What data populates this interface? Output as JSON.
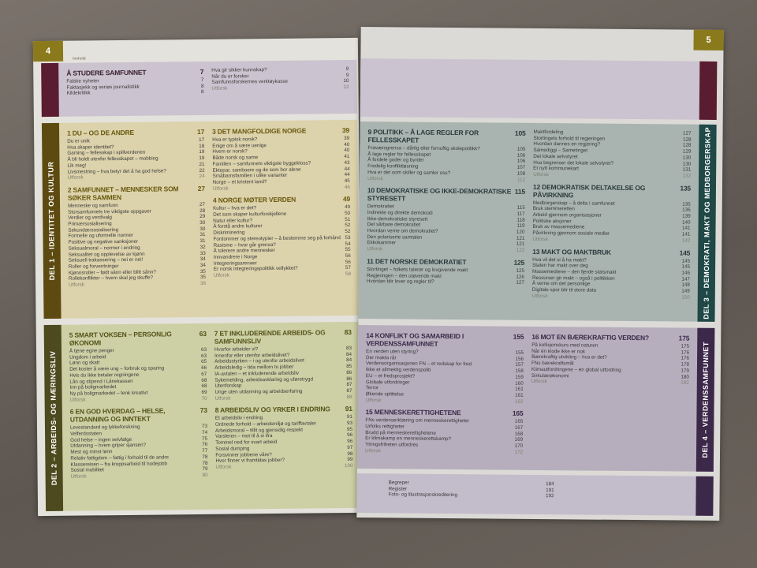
{
  "left": {
    "page_number": "4",
    "kicker": "Innhold",
    "color": "#8a7a1c",
    "intro": {
      "color": "#cbc3cf",
      "tab": "#5a1c30",
      "label": "",
      "cols": [
        [
          {
            "title": "Å studere samfunnet",
            "page": "7",
            "items": [
              [
                "Falske nyheter",
                "7"
              ],
              [
                "Faktasjekk og seriøs journalistikk",
                "8"
              ],
              [
                "Kildekritikk",
                "8"
              ]
            ]
          }
        ],
        [
          {
            "title": "",
            "page": "",
            "items": [
              [
                "Hva gir sikker kunnskap?",
                "9"
              ],
              [
                "Når du er forsker",
                "9"
              ],
              [
                "Samfunnsforskernes verktøykasse",
                "10"
              ],
              [
                "Utforsk",
                "12"
              ]
            ]
          }
        ]
      ]
    },
    "del1": {
      "color": "#dcd2ab",
      "tab": "#5c4a10",
      "label": "DEL 1 – IDENTITET OG KULTUR",
      "title_color": "#6a5a10",
      "cols": [
        [
          {
            "title": "1 Du – og de andre",
            "page": "17",
            "items": [
              [
                "Du er unik",
                "17"
              ],
              [
                "Hva skaper identitet?",
                "18"
              ],
              [
                "Gaming – fellesskap i spillverdenen",
                "19"
              ],
              [
                "Å bli holdt utenfor fellesskapet – mobbing",
                "19"
              ],
              [
                "Lik meg!",
                "21"
              ],
              [
                "Livsmestring – hva betyr det å ha god helse?",
                "22"
              ],
              [
                "Utforsk",
                "24"
              ]
            ]
          },
          {
            "title": "2 Samfunnet – mennesker som søker sammen",
            "page": "27",
            "items": [
              [
                "Menneske og samfunn",
                "27"
              ],
              [
                "Storsamfunnets tre viktigste oppgaver",
                "28"
              ],
              [
                "Verdier og verdivalg",
                "29"
              ],
              [
                "Primærsosialisering",
                "30"
              ],
              [
                "Sekundærsosialisering",
                "30"
              ],
              [
                "Formelle og uformelle normer",
                "31"
              ],
              [
                "Positive og negative sanksjoner",
                "31"
              ],
              [
                "Seksualmoral – normer i endring",
                "32"
              ],
              [
                "Seksualitet og opplevelse av kjønn",
                "33"
              ],
              [
                "Seksuell trakassering – nei er nei!",
                "34"
              ],
              [
                "Roller og forventninger",
                "34"
              ],
              [
                "Kjønnsroller – født sånn eller blitt sånn?",
                "35"
              ],
              [
                "Rollekonflikter – hvem skal jeg skuffe?",
                "35"
              ],
              [
                "Utforsk",
                "36"
              ]
            ]
          }
        ],
        [
          {
            "title": "3 Det mangfoldige Norge",
            "page": "39",
            "items": [
              [
                "Hva er typisk norsk?",
                "39"
              ],
              [
                "Enige om å være uenige",
                "40"
              ],
              [
                "Hvem er norsk?",
                "40"
              ],
              [
                "Både norsk og same",
                "41"
              ],
              [
                "Familien – samfunnets viktigste byggekloss?",
                "43"
              ],
              [
                "Ektepar, samboere og de som bor alene",
                "44"
              ],
              [
                "Småbarnsfamilien i ulike varianter",
                "44"
              ],
              [
                "Norge – et kristent land?",
                "45"
              ],
              [
                "Utforsk",
                "46"
              ]
            ]
          },
          {
            "title": "4 Norge møter verden",
            "page": "49",
            "items": [
              [
                "Kultur – hva er det?",
                "49"
              ],
              [
                "Det som skaper kulturforskjellene",
                "50"
              ],
              [
                "Natur eller kultur?",
                "51"
              ],
              [
                "Å forstå andre kulturer",
                "52"
              ],
              [
                "Diskriminering",
                "52"
              ],
              [
                "Fordommer og stereotypier – å bestemme seg på forhånd",
                "53"
              ],
              [
                "Rasisme – hvor går grensa?",
                "54"
              ],
              [
                "Å tolerere andre mennesker",
                "55"
              ],
              [
                "Innvandrere i Norge",
                "56"
              ],
              [
                "Integreringsarenaer",
                "56"
              ],
              [
                "Er norsk integreringspolitikk vellykket?",
                "57"
              ],
              [
                "Utforsk",
                "58"
              ]
            ]
          }
        ]
      ]
    },
    "del2": {
      "color": "#cdcfa5",
      "tab": "#4c4a1e",
      "label": "DEL 2 – ARBEIDS- OG NÆRINGSLIV",
      "title_color": "#55541a",
      "cols": [
        [
          {
            "title": "5 Smart voksen – personlig økonomi",
            "page": "63",
            "items": [
              [
                "Å tjene egne penger",
                "63"
              ],
              [
                "Ungdom i arbeid",
                "63"
              ],
              [
                "Lønn og skatt",
                "65"
              ],
              [
                "Det koster å være ung – forbruk og sparing",
                "66"
              ],
              [
                "Hvis du ikke betaler regningene",
                "67"
              ],
              [
                "Lån og stipend i Lånekassen",
                "68"
              ],
              [
                "Inn på boligmarkedet",
                "68"
              ],
              [
                "Ny på boligmarkedet – tenk kreativt",
                "69"
              ],
              [
                "Utforsk",
                "70"
              ]
            ]
          },
          {
            "title": "6 En god hverdag – helse, utdanning og inntekt",
            "page": "73",
            "items": [
              [
                "Levestandard og lykkeforskning",
                "73"
              ],
              [
                "Velferdsstaten",
                "74"
              ],
              [
                "God helse – ingen selvfølge",
                "75"
              ],
              [
                "Utdanning – hvem griper sjansen?",
                "76"
              ],
              [
                "Mest og minst lønn",
                "77"
              ],
              [
                "Relativ fattigdom – fattig i forhold til de andre",
                "78"
              ],
              [
                "Klassereisen – fra kroppsarbeid til hodejobb",
                "78"
              ],
              [
                "Sosial mobilitet",
                "79"
              ],
              [
                "Utforsk",
                "80"
              ]
            ]
          }
        ],
        [
          {
            "title": "7 Et inkluderende arbeids- og samfunnsliv",
            "page": "83",
            "items": [
              [
                "Hvorfor arbeider vi?",
                "83"
              ],
              [
                "Innenfor eller utenfor arbeidslivet?",
                "84"
              ],
              [
                "Arbeidsstyrken – i og utenfor arbeidslivet",
                "84"
              ],
              [
                "Arbeidsledig – tida mellom to jobber",
                "85"
              ],
              [
                "IA-avtalen – et inkluderende arbeidsliv",
                "86"
              ],
              [
                "Sykemelding, arbeidsavklaring og uføretrygd",
                "86"
              ],
              [
                "Utenforskap",
                "87"
              ],
              [
                "Unge uten utdanning og arbeidserfaring",
                "87"
              ],
              [
                "Utforsk",
                "88"
              ]
            ]
          },
          {
            "title": "8 Arbeidsliv og yrker i endring",
            "page": "91",
            "items": [
              [
                "Et arbeidsliv i endring",
                "91"
              ],
              [
                "Ordnede forhold – arbeidsmiljø og tariffavtaler",
                "93"
              ],
              [
                "Arbeidsmoral – tillit og gjensidig respekt",
                "95"
              ],
              [
                "Varsleren – mot til å si ifra",
                "96"
              ],
              [
                "Tommel ned for svart arbeid",
                "96"
              ],
              [
                "Sosial dumping",
                "97"
              ],
              [
                "Forsvinner jobbene våre?",
                "98"
              ],
              [
                "Hvor finner vi framtidas jobber?",
                "99"
              ],
              [
                "Utforsk",
                "100"
              ]
            ]
          }
        ]
      ]
    }
  },
  "right": {
    "page_number": "5",
    "color": "#8a7a1c",
    "top": {
      "color": "#cbc3cf",
      "tab": "#5a1c30"
    },
    "del3": {
      "color": "#a9b4b1",
      "tab": "#1f4846",
      "label": "DEL 3 – DEMOKRATI, MAKT OG MEDBORGERSKAP",
      "title_color": "#2a3a3a",
      "cols": [
        [
          {
            "title": "9 Politikk – å lage regler for fellesskapet",
            "page": "105",
            "items": [
              [
                "Fraværsgrensa – dårlig eller fornuftig skolepolitikk?",
                "105"
              ],
              [
                "Å lage regler for fellesskapet",
                "106"
              ],
              [
                "Å fordele goder og byrder",
                "106"
              ],
              [
                "Fredelig konfliktløsning",
                "107"
              ],
              [
                "Hva er det som skiller og samler oss?",
                "108"
              ],
              [
                "Utforsk",
                "112"
              ]
            ]
          },
          {
            "title": "10 Demokratiske og ikke-demokratiske styresett",
            "page": "115",
            "items": [
              [
                "Demokratiet",
                "115"
              ],
              [
                "Indirekte og direkte demokrati",
                "117"
              ],
              [
                "Ikke-demokratiske styresett",
                "118"
              ],
              [
                "Det sårbare demokratiet",
                "119"
              ],
              [
                "Hvordan verne om demokratiet?",
                "120"
              ],
              [
                "Den polariserte samtalen",
                "121"
              ],
              [
                "Ekkokammer",
                "121"
              ],
              [
                "Utforsk",
                "122"
              ]
            ]
          },
          {
            "title": "11 Det norske demokratiet",
            "page": "125",
            "items": [
              [
                "Stortinget – folkets talerør og lovgivende makt",
                "125"
              ],
              [
                "Regjeringen – den utøvende makt",
                "126"
              ],
              [
                "Hvordan blir lover og regler til?",
                "127"
              ]
            ]
          }
        ],
        [
          {
            "title": "",
            "page": "",
            "items": [
              [
                "Maktfordeling",
                "127"
              ],
              [
                "Stortingets forhold til regjeringen",
                "128"
              ],
              [
                "Hvordan dannes en regjering?",
                "128"
              ],
              [
                "Sámediggi – Sametinget",
                "129"
              ],
              [
                "Det lokale selvstyret",
                "130"
              ],
              [
                "Hva begrenser det lokale selvstyret?",
                "130"
              ],
              [
                "Et nytt kommunekart",
                "131"
              ],
              [
                "Utforsk",
                "132"
              ]
            ]
          },
          {
            "title": "12 Demokratisk deltakelse og påvirkning",
            "page": "135",
            "items": [
              [
                "Medborgerskap – å delta i samfunnet",
                "135"
              ],
              [
                "Bruk stemmeretten",
                "136"
              ],
              [
                "Arbeid gjennom organisasjoner",
                "139"
              ],
              [
                "Politiske aksjoner",
                "140"
              ],
              [
                "Bruk av massemediene",
                "141"
              ],
              [
                "Påvirkning gjennom sosiale medier",
                "141"
              ],
              [
                "Utforsk",
                "142"
              ]
            ]
          },
          {
            "title": "13 Makt og maktbruk",
            "page": "145",
            "items": [
              [
                "Hva vil det si å ha makt?",
                "145"
              ],
              [
                "Staten har makt over deg",
                "145"
              ],
              [
                "Massemediene – den fjerde statsmakt",
                "146"
              ],
              [
                "Ressurser gir makt – også i politikken",
                "147"
              ],
              [
                "Å verne om det personlige",
                "148"
              ],
              [
                "Digitale spor blir til store data",
                "149"
              ],
              [
                "Utforsk",
                "150"
              ]
            ]
          }
        ]
      ]
    },
    "del4": {
      "color": "#b6aebd",
      "tab": "#3c2848",
      "label": "DEL 4 – VERDENSSAMFUNNET",
      "title_color": "#3a2a48",
      "cols": [
        [
          {
            "title": "14 Konflikt og samarbeid i verdenssamfunnet",
            "page": "155",
            "items": [
              [
                "En verden uten styring?",
                "155"
              ],
              [
                "Der makta rår",
                "156"
              ],
              [
                "Verdensorganisasjonen FN – et redskap for fred",
                "157"
              ],
              [
                "Ikke et allmektig verdenspoliti",
                "158"
              ],
              [
                "EU – et fredsprosjekt?",
                "159"
              ],
              [
                "Globale utfordringer",
                "160"
              ],
              [
                "Terror",
                "161"
              ],
              [
                "Økende splittelse",
                "161"
              ],
              [
                "Utforsk",
                "162"
              ]
            ]
          },
          {
            "title": "15 Menneskerettighetene",
            "page": "165",
            "items": [
              [
                "FNs verdenserklæring om menneskerettigheter",
                "165"
              ],
              [
                "Urfolks rettigheter",
                "167"
              ],
              [
                "Brudd på menneskerettighetene",
                "168"
              ],
              [
                "Er klimakamp en menneskerettskamp?",
                "169"
              ],
              [
                "Ytringsfriheten utfordres",
                "170"
              ],
              [
                "Utforsk",
                "172"
              ]
            ]
          }
        ],
        [
          {
            "title": "16 Mot en bærekraftig verden?",
            "page": "175",
            "items": [
              [
                "På kollisjonskurs med naturen",
                "175"
              ],
              [
                "Når én klode ikke er nok",
                "176"
              ],
              [
                "Bærekraftig utvikling – hva er det?",
                "176"
              ],
              [
                "FNs bærekraftsmål",
                "178"
              ],
              [
                "Klimautfordringene – en global utfordring",
                "179"
              ],
              [
                "Sirkulærøkonomi",
                "180"
              ],
              [
                "Utforsk",
                "182"
              ]
            ]
          }
        ]
      ]
    },
    "appendix": {
      "color": "#c3bccb",
      "items": [
        [
          "Begreper",
          "184"
        ],
        [
          "Register",
          "191"
        ],
        [
          "Foto- og illustrasjonskreditering",
          "192"
        ]
      ]
    }
  }
}
